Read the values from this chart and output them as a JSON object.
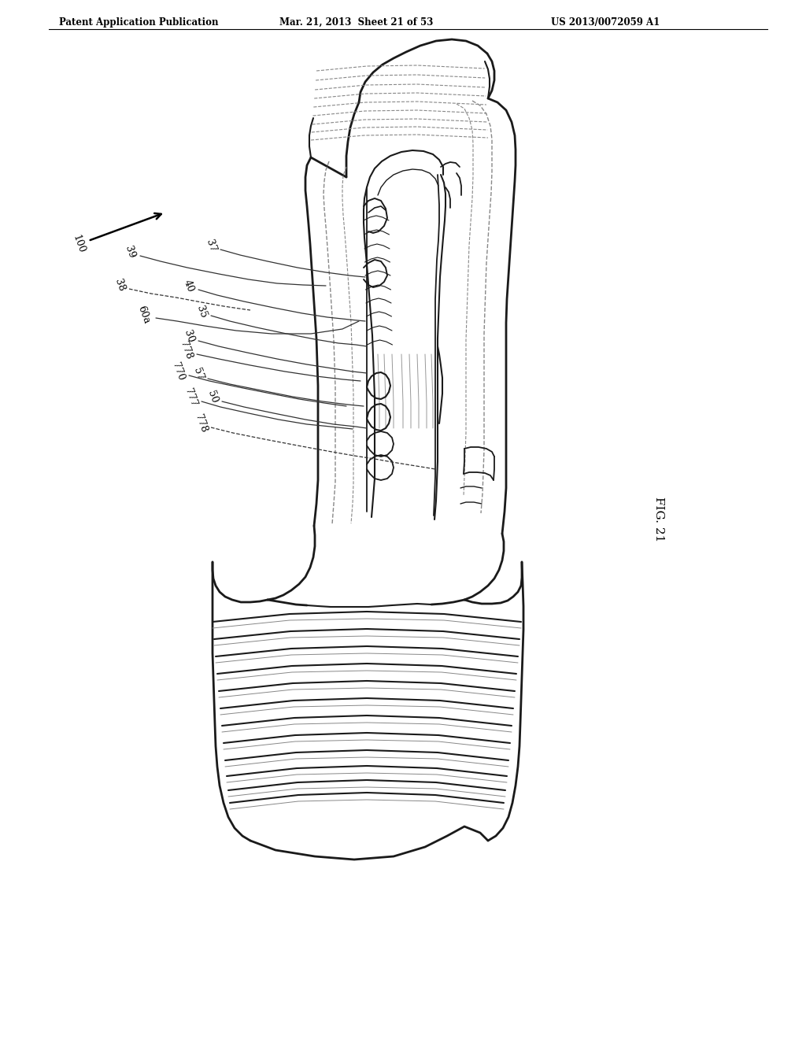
{
  "bg_color": "#ffffff",
  "header1": "Patent Application Publication",
  "header2": "Mar. 21, 2013  Sheet 21 of 53",
  "header3": "US 2013/0072059 A1",
  "fig_label": "FIG. 21",
  "lc": "#1a1a1a",
  "lc_med": "#555555",
  "lc_light": "#aaaaaa",
  "lc_dash": "#888888"
}
